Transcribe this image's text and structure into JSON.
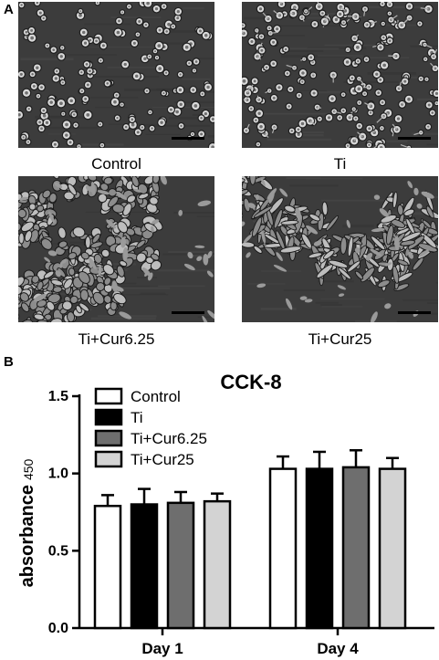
{
  "panel_a": {
    "letter": "A",
    "images": [
      {
        "caption": "Control"
      },
      {
        "caption": "Ti"
      },
      {
        "caption": "Ti+Cur6.25"
      },
      {
        "caption": "Ti+Cur25"
      }
    ]
  },
  "panel_b": {
    "letter": "B"
  },
  "chart_data": {
    "type": "bar",
    "title": "CCK-8",
    "ylabel": "absorbance",
    "ylabel_sub": "450",
    "xlabel": "",
    "categories": [
      "Day 1",
      "Day 4"
    ],
    "ylim": [
      0,
      1.5
    ],
    "yticks": [
      "0.0",
      "0.5",
      "1.0",
      "1.5"
    ],
    "legend_position": "top-left",
    "series": [
      {
        "name": "Control",
        "color": "#ffffff",
        "values": [
          0.79,
          1.03
        ],
        "errors": [
          0.07,
          0.08
        ]
      },
      {
        "name": "Ti",
        "color": "#000000",
        "values": [
          0.8,
          1.03
        ],
        "errors": [
          0.1,
          0.11
        ]
      },
      {
        "name": "Ti+Cur6.25",
        "color": "#6e6e6e",
        "values": [
          0.81,
          1.04
        ],
        "errors": [
          0.07,
          0.11
        ]
      },
      {
        "name": "Ti+Cur25",
        "color": "#d3d3d3",
        "values": [
          0.82,
          1.03
        ],
        "errors": [
          0.05,
          0.07
        ]
      }
    ]
  }
}
